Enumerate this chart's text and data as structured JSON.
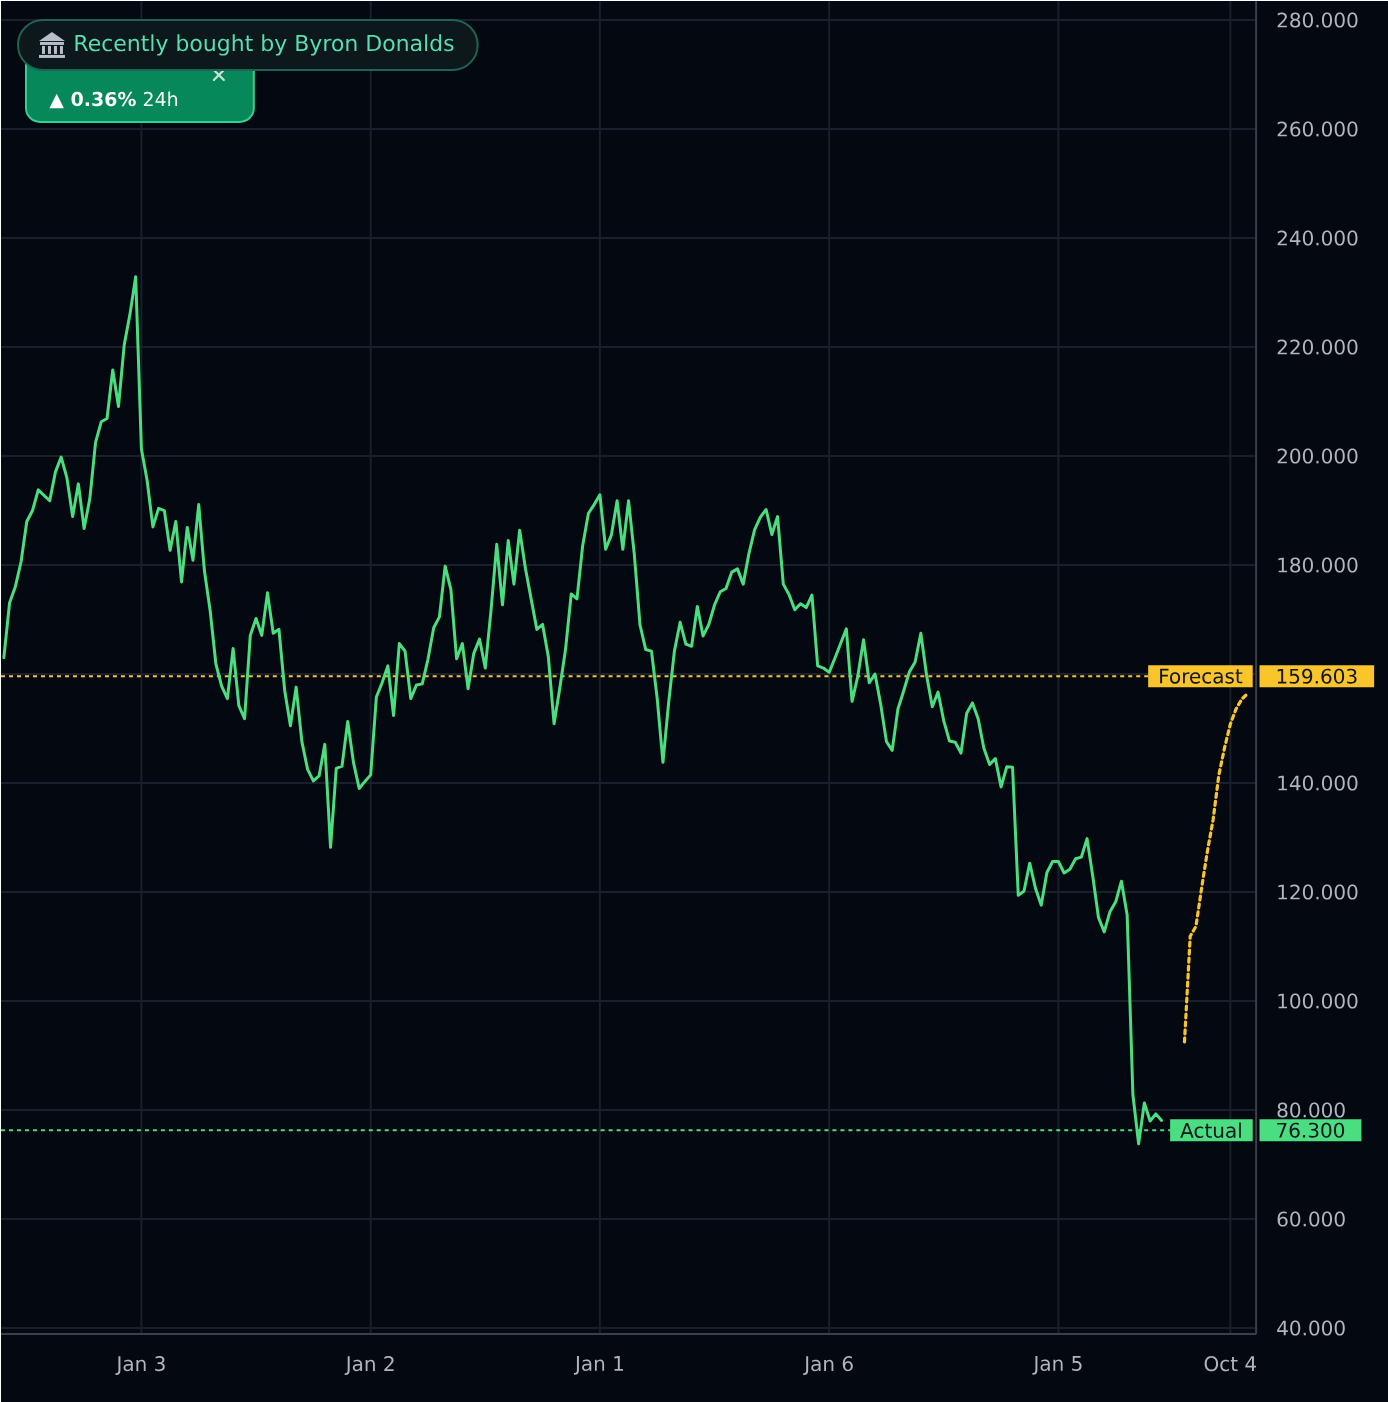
{
  "chart_data": {
    "type": "line",
    "categories": [
      null,
      null,
      null,
      null,
      null,
      null,
      null,
      null,
      null,
      null,
      null,
      null,
      null,
      null,
      null,
      null,
      null,
      null,
      null,
      null,
      null,
      null,
      null,
      null,
      "Jan 3",
      null,
      null,
      null,
      null,
      null,
      null,
      null,
      null,
      null,
      null,
      null,
      null,
      null,
      null,
      null,
      null,
      null,
      null,
      null,
      null,
      null,
      null,
      null,
      null,
      null,
      null,
      null,
      null,
      null,
      null,
      null,
      null,
      null,
      null,
      null,
      null,
      null,
      null,
      null,
      "Jan 2",
      null,
      null,
      null,
      null,
      null,
      null,
      null,
      null,
      null,
      null,
      null,
      null,
      null,
      null,
      null,
      null,
      null,
      null,
      null,
      null,
      null,
      null,
      null,
      null,
      null,
      null,
      null,
      null,
      null,
      null,
      null,
      null,
      null,
      null,
      null,
      null,
      null,
      null,
      null,
      "Jan 1",
      null,
      null,
      null,
      null,
      null,
      null,
      null,
      null,
      null,
      null,
      null,
      null,
      null,
      null,
      null,
      null,
      null,
      null,
      null,
      null,
      null,
      null,
      null,
      null,
      null,
      null,
      null,
      null,
      null,
      null,
      null,
      null,
      null,
      null,
      null,
      null,
      null,
      null,
      null,
      "Jan 6",
      null,
      null,
      null,
      null,
      null,
      null,
      null,
      null,
      null,
      null,
      null,
      null,
      null,
      null,
      null,
      null,
      null,
      null,
      null,
      null,
      null,
      null,
      null,
      null,
      null,
      null,
      null,
      null,
      null,
      null,
      null,
      null,
      null,
      null,
      null,
      null,
      null,
      null,
      null,
      "Jan 5",
      null,
      null,
      null,
      null,
      null,
      null,
      null,
      null,
      null,
      null,
      null,
      null,
      null,
      null,
      null,
      null,
      null,
      null,
      null,
      null,
      null,
      null,
      null,
      null,
      null,
      null,
      null,
      null,
      null,
      "Oct 4",
      null,
      null,
      null,
      null
    ],
    "series": [
      {
        "color": "#4ade80",
        "values": [
          163.0,
          173.1,
          176.0,
          180.6,
          188.0,
          190.0,
          193.8,
          192.8,
          191.8,
          197.1,
          199.8,
          196.0,
          188.9,
          194.9,
          186.7,
          192.2,
          202.5,
          206.3,
          206.9,
          215.8,
          209.1,
          220.4,
          226.0,
          232.9,
          201.3,
          195.5,
          187.0,
          190.4,
          190.0,
          182.7,
          188.0,
          176.9,
          186.9,
          180.9,
          191.1,
          178.9,
          171.6,
          161.8,
          157.8,
          155.5,
          164.7,
          154.2,
          151.8,
          167.1,
          170.2,
          167.1,
          174.9,
          167.5,
          168.2,
          157.0,
          150.5,
          157.6,
          147.6,
          142.5,
          140.4,
          141.3,
          147.1,
          128.2,
          142.7,
          143.1,
          151.3,
          143.8,
          139.0,
          140.3,
          141.5,
          155.8,
          158.4,
          161.5,
          152.4,
          165.6,
          164.2,
          155.5,
          158.0,
          158.2,
          162.7,
          168.5,
          170.5,
          179.8,
          175.5,
          162.8,
          165.6,
          157.3,
          163.8,
          166.4,
          161.1,
          171.7,
          183.8,
          172.7,
          184.5,
          176.5,
          186.4,
          179.4,
          173.8,
          168.2,
          169.1,
          163.2,
          150.9,
          157.4,
          164.5,
          174.7,
          173.8,
          183.6,
          189.5,
          191.1,
          192.9,
          182.9,
          185.5,
          191.8,
          182.9,
          191.8,
          182.0,
          169.0,
          164.5,
          164.2,
          155.5,
          143.8,
          154.8,
          164.2,
          169.5,
          165.5,
          165.1,
          172.4,
          167.0,
          169.1,
          172.7,
          175.1,
          175.7,
          178.7,
          179.3,
          176.5,
          182.1,
          186.5,
          188.8,
          190.2,
          185.6,
          188.9,
          176.5,
          174.6,
          171.8,
          172.9,
          172.2,
          174.5,
          161.5,
          161.1,
          160.3,
          162.9,
          165.6,
          168.3,
          155.0,
          159.6,
          166.3,
          158.4,
          160.0,
          154.4,
          147.6,
          146.0,
          153.6,
          156.9,
          160.4,
          162.2,
          167.5,
          159.8,
          154.0,
          156.7,
          151.4,
          147.7,
          147.5,
          145.5,
          152.8,
          154.7,
          151.8,
          146.4,
          143.4,
          144.5,
          139.3,
          143.0,
          142.9,
          119.4,
          120.2,
          125.3,
          120.7,
          117.6,
          123.6,
          125.6,
          125.6,
          123.5,
          124.2,
          126.1,
          126.4,
          129.8,
          122.9,
          115.3,
          112.7,
          116.4,
          118.2,
          122.0,
          115.8,
          82.8,
          73.8,
          81.3,
          78.0,
          79.3,
          78.1,
          null,
          null,
          null,
          null,
          null,
          null,
          null,
          null,
          null,
          null,
          null,
          null,
          null,
          null,
          null,
          null
        ]
      },
      {
        "color": "#f9c52b",
        "line_style": "dotted",
        "values": [
          null,
          null,
          null,
          null,
          null,
          null,
          null,
          null,
          null,
          null,
          null,
          null,
          null,
          null,
          null,
          null,
          null,
          null,
          null,
          null,
          null,
          null,
          null,
          null,
          null,
          null,
          null,
          null,
          null,
          null,
          null,
          null,
          null,
          null,
          null,
          null,
          null,
          null,
          null,
          null,
          null,
          null,
          null,
          null,
          null,
          null,
          null,
          null,
          null,
          null,
          null,
          null,
          null,
          null,
          null,
          null,
          null,
          null,
          null,
          null,
          null,
          null,
          null,
          null,
          null,
          null,
          null,
          null,
          null,
          null,
          null,
          null,
          null,
          null,
          null,
          null,
          null,
          null,
          null,
          null,
          null,
          null,
          null,
          null,
          null,
          null,
          null,
          null,
          null,
          null,
          null,
          null,
          null,
          null,
          null,
          null,
          null,
          null,
          null,
          null,
          null,
          null,
          null,
          null,
          null,
          null,
          null,
          null,
          null,
          null,
          null,
          null,
          null,
          null,
          null,
          null,
          null,
          null,
          null,
          null,
          null,
          null,
          null,
          null,
          null,
          null,
          null,
          null,
          null,
          null,
          null,
          null,
          null,
          null,
          null,
          null,
          null,
          null,
          null,
          null,
          null,
          null,
          null,
          null,
          null,
          null,
          null,
          null,
          null,
          null,
          null,
          null,
          null,
          null,
          null,
          null,
          null,
          null,
          null,
          null,
          null,
          null,
          null,
          null,
          null,
          null,
          null,
          null,
          null,
          null,
          null,
          null,
          null,
          null,
          null,
          null,
          null,
          null,
          null,
          null,
          null,
          null,
          null,
          null,
          null,
          null,
          null,
          null,
          null,
          null,
          null,
          null,
          null,
          null,
          null,
          null,
          null,
          null,
          null,
          null,
          null,
          null,
          null,
          null,
          null,
          null,
          92.5,
          111.9,
          113.7,
          120.8,
          127.5,
          133.3,
          141.5,
          146.5,
          150.8,
          153.6,
          155.4,
          156.4,
          null
        ]
      }
    ],
    "ylim": [
      38.9,
      283.5
    ],
    "yticks": [
      {
        "value": 40,
        "label": "40.000"
      },
      {
        "value": 60,
        "label": "60.000"
      },
      {
        "value": 80,
        "label": "80.000"
      },
      {
        "value": 100,
        "label": "100.000"
      },
      {
        "value": 120,
        "label": "120.000"
      },
      {
        "value": 140,
        "label": "140.000"
      },
      {
        "value": 160,
        "label": null
      },
      {
        "value": 180,
        "label": "180.000"
      },
      {
        "value": 200,
        "label": "200.000"
      },
      {
        "value": 220,
        "label": "220.000"
      },
      {
        "value": 240,
        "label": "240.000"
      },
      {
        "value": 260,
        "label": "260.000"
      },
      {
        "value": 280,
        "label": "280.000"
      }
    ],
    "grid": true,
    "ref_lines": [
      {
        "axis": "y",
        "value": 159.603,
        "label": "Forecast",
        "color": "#f9c52b",
        "line_style": "dotted"
      },
      {
        "axis": "y",
        "value": 76.3,
        "label": "Actual",
        "color": "#4ade80",
        "line_style": "dotted"
      }
    ],
    "annotations": [
      "Recently bought by Byron Donalds",
      "**▲ 0.36%** 24h",
      "159.603",
      "76.300"
    ]
  }
}
